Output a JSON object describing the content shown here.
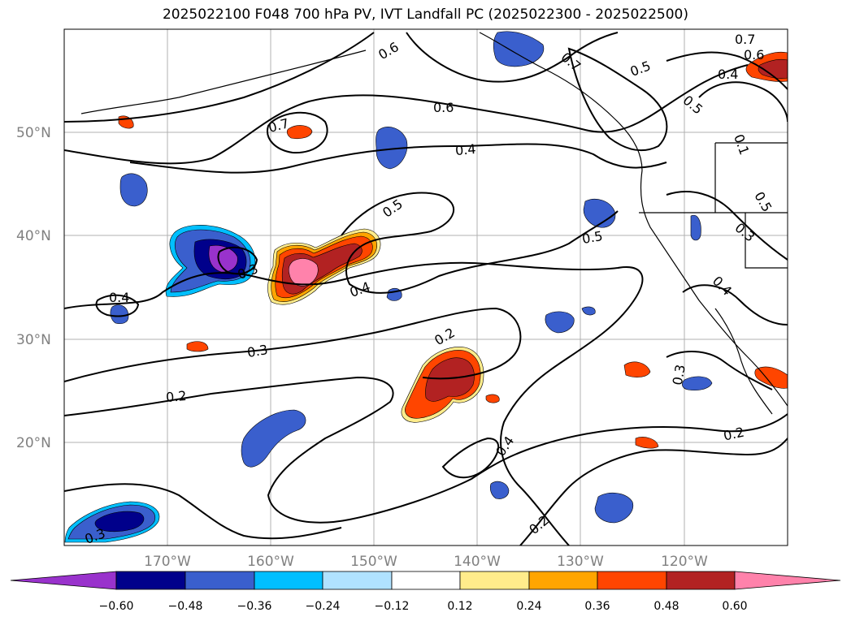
{
  "title": "2025022100 F048 700 hPa PV, IVT Landfall PC (2025022300 - 2025022500)",
  "map": {
    "lon_range": [
      -180,
      -110
    ],
    "lat_range": [
      10,
      60
    ],
    "lat_labels": [
      "20°N",
      "30°N",
      "40°N",
      "50°N"
    ],
    "lon_labels": [
      "170°W",
      "160°W",
      "150°W",
      "140°W",
      "130°W",
      "120°W"
    ],
    "grid": true,
    "contour_labels": [
      "0.6",
      "0.7",
      "0.5",
      "0.6",
      "0.4",
      "0.7",
      "0.6",
      "0.5",
      "0.4",
      "0.5",
      "0.1",
      "0.4",
      "0.5",
      "0.3",
      "0.3",
      "0.4",
      "0.4",
      "0.2",
      "0.3",
      "0.2",
      "0.3",
      "0.4",
      "0.2",
      "0.2",
      "0.3",
      "0.5",
      "0.7"
    ]
  },
  "colorbar": {
    "ticks": [
      "−0.60",
      "−0.48",
      "−0.36",
      "−0.24",
      "−0.12",
      "0.12",
      "0.24",
      "0.36",
      "0.48",
      "0.60"
    ],
    "colors": [
      "#9932cc",
      "#00008b",
      "#3a5fcd",
      "#00bfff",
      "#b0e2ff",
      "#ffffff",
      "#ffec8b",
      "#ffa500",
      "#ff4500",
      "#b22222",
      "#ff82ab"
    ],
    "extend": "both"
  },
  "colors": {
    "grid": "#b0b0b0",
    "contour": "#000000",
    "tick_text": "#808080"
  }
}
